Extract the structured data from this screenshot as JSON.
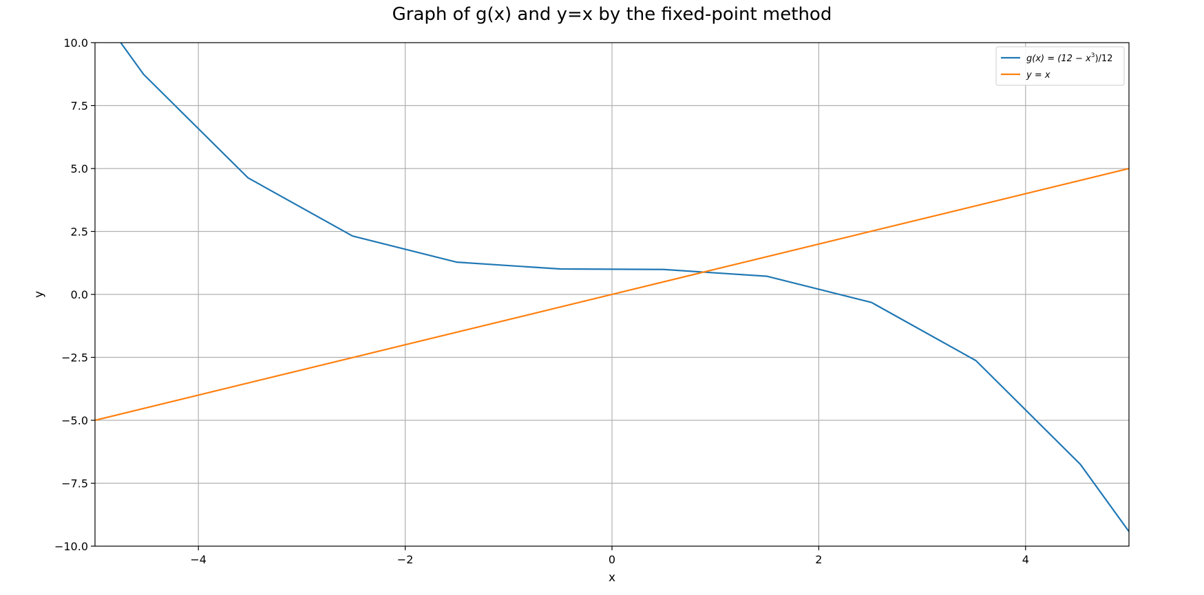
{
  "chart_data": {
    "type": "line",
    "title": "Graph of g(x) and y=x by the fixed-point method",
    "xlabel": "x",
    "ylabel": "y",
    "xlim": [
      -5,
      5
    ],
    "ylim": [
      -10,
      10
    ],
    "xticks": [
      -4,
      -2,
      0,
      2,
      4
    ],
    "yticks": [
      -10,
      -7.5,
      -5,
      -2.5,
      0,
      2.5,
      5,
      7.5,
      10
    ],
    "xtick_labels": [
      "−4",
      "−2",
      "0",
      "2",
      "4"
    ],
    "ytick_labels": [
      "−10.0",
      "−7.5",
      "−5.0",
      "−2.5",
      "0.0",
      "2.5",
      "5.0",
      "7.5",
      "10.0"
    ],
    "grid": true,
    "legend_position": "top-right",
    "series": [
      {
        "name": "g(x) =  (12 − x^3)/12",
        "legend": {
          "prefix": "g(x) =  (12 − x",
          "sup": "3",
          "suffix": ")/12"
        },
        "color": "#1f77b4",
        "x": [
          -5.0,
          -4.53,
          -3.52,
          -2.51,
          -1.5,
          -0.5,
          0.5,
          1.5,
          2.51,
          3.52,
          4.53,
          5.0
        ],
        "y": [
          11.42,
          8.74,
          4.63,
          2.32,
          1.28,
          1.01,
          0.99,
          0.72,
          -0.32,
          -2.63,
          -6.75,
          -9.42
        ]
      },
      {
        "name": "y =  x",
        "legend": {
          "prefix": "y =  x",
          "sup": "",
          "suffix": ""
        },
        "color": "#ff7f0e",
        "x": [
          -5,
          5
        ],
        "y": [
          -5,
          5
        ]
      }
    ]
  }
}
